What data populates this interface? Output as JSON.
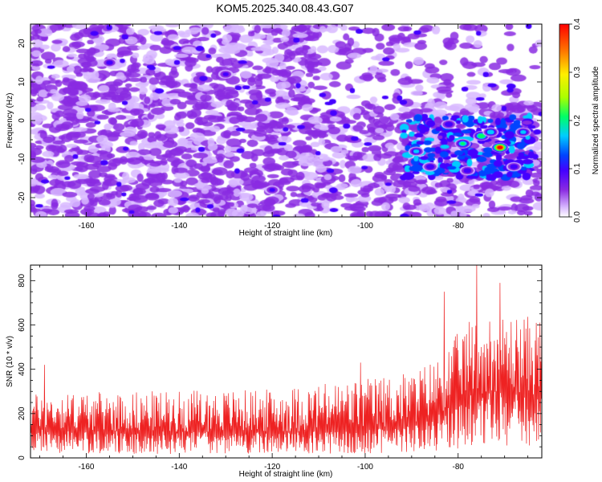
{
  "title": "KOM5.2025.340.08.43.G07",
  "chart_data": [
    {
      "type": "heatmap",
      "xlabel": "Height of straight line (km)",
      "ylabel": "Frequency (Hz)",
      "xlim": [
        -172,
        -62
      ],
      "ylim": [
        -25,
        25
      ],
      "x_ticks": [
        -160,
        -140,
        -120,
        -100,
        -80
      ],
      "y_ticks": [
        -20,
        -10,
        0,
        10,
        20
      ],
      "colorbar": {
        "label": "Normalized spectral amplitude",
        "range": [
          0,
          0.4
        ],
        "ticks": [
          "0.0",
          "0.1",
          "0.2",
          "0.3",
          "0.4"
        ]
      },
      "colormap": [
        "#ffffff",
        "#d8b8ff",
        "#8a2be2",
        "#4400ff",
        "#0044ff",
        "#00ccff",
        "#00ff66",
        "#aaff00",
        "#ffee00",
        "#ff7700",
        "#ff0000"
      ],
      "hotspots": [
        {
          "x": -71,
          "y": -7,
          "amp": 0.4
        },
        {
          "x": -75,
          "y": -4,
          "amp": 0.22
        },
        {
          "x": -79,
          "y": -6,
          "amp": 0.18
        },
        {
          "x": -73,
          "y": -3,
          "amp": 0.16
        },
        {
          "x": -66,
          "y": -3,
          "amp": 0.14
        },
        {
          "x": -89,
          "y": -8,
          "amp": 0.14
        },
        {
          "x": -82,
          "y": -1,
          "amp": 0.12
        },
        {
          "x": -86,
          "y": -12,
          "amp": 0.12
        },
        {
          "x": -78,
          "y": -13,
          "amp": 0.11
        },
        {
          "x": -68,
          "y": -12,
          "amp": 0.11
        },
        {
          "x": -155,
          "y": 15,
          "amp": 0.1
        },
        {
          "x": -130,
          "y": 12,
          "amp": 0.09
        },
        {
          "x": -120,
          "y": -18,
          "amp": 0.09
        }
      ]
    },
    {
      "type": "line",
      "xlabel": "Height of straight line (km)",
      "ylabel": "SNR (10 * v/v)",
      "xlim": [
        -172,
        -62
      ],
      "ylim": [
        0,
        870
      ],
      "x_ticks": [
        -160,
        -140,
        -120,
        -100,
        -80
      ],
      "y_ticks": [
        0,
        200,
        400,
        600,
        800
      ],
      "color": "#ee2222",
      "envelope": [
        {
          "x": -172,
          "base": 130,
          "peak": 290
        },
        {
          "x": -150,
          "base": 120,
          "peak": 300
        },
        {
          "x": -120,
          "base": 115,
          "peak": 310
        },
        {
          "x": -100,
          "base": 125,
          "peak": 360
        },
        {
          "x": -90,
          "base": 150,
          "peak": 390
        },
        {
          "x": -84,
          "base": 200,
          "peak": 460
        },
        {
          "x": -78,
          "base": 280,
          "peak": 620
        },
        {
          "x": -72,
          "base": 300,
          "peak": 650
        },
        {
          "x": -62,
          "base": 280,
          "peak": 640
        }
      ],
      "spikes": [
        {
          "x": -169,
          "y": 420
        },
        {
          "x": -101,
          "y": 430
        },
        {
          "x": -83,
          "y": 750
        },
        {
          "x": -76,
          "y": 870
        },
        {
          "x": -71,
          "y": 790
        },
        {
          "x": -62,
          "y": 710
        }
      ]
    }
  ]
}
